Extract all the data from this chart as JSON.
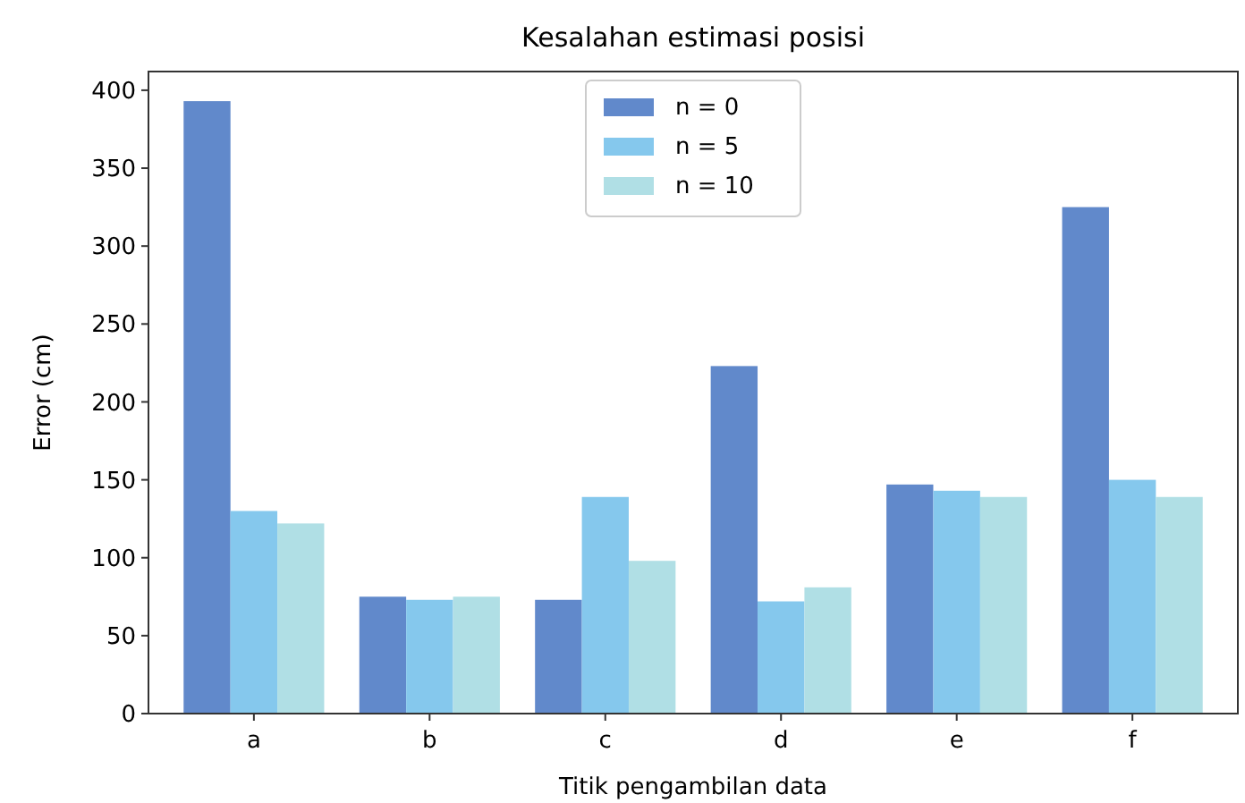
{
  "chart_data": {
    "type": "bar",
    "title": "Kesalahan estimasi posisi",
    "xlabel": "Titik pengambilan data",
    "ylabel": "Error (cm)",
    "categories": [
      "a",
      "b",
      "c",
      "d",
      "e",
      "f"
    ],
    "series": [
      {
        "name": "n = 0",
        "color": "#6189cb",
        "values": [
          393,
          75,
          73,
          223,
          147,
          325
        ]
      },
      {
        "name": "n = 5",
        "color": "#85c8ed",
        "values": [
          130,
          73,
          139,
          72,
          143,
          150
        ]
      },
      {
        "name": "n = 10",
        "color": "#b0dfe5",
        "values": [
          122,
          75,
          98,
          81,
          139,
          139
        ]
      }
    ],
    "ylim": [
      0,
      412
    ],
    "yticks": [
      0,
      50,
      100,
      150,
      200,
      250,
      300,
      350,
      400
    ],
    "legend": "top",
    "grid": false
  }
}
